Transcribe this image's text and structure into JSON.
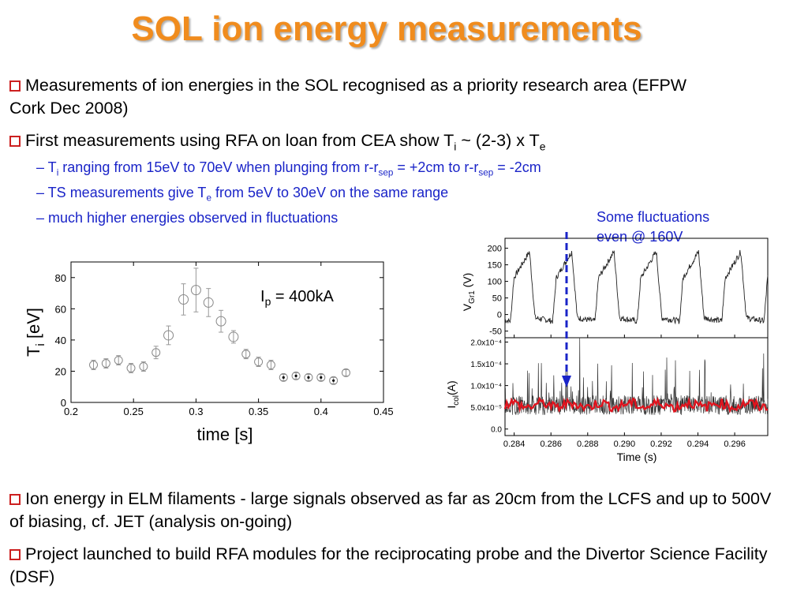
{
  "title": "SOL ion energy measurements",
  "bullets": {
    "b1": "Measurements of ion energies in the SOL recognised as a priority research area (EFPW Cork Dec 2008)",
    "b2": {
      "a": "First measurements using RFA on loan from CEA show T",
      "sub1": "i",
      "b": " ~ (2-3) x T",
      "sub2": "e"
    },
    "s1": {
      "a": "– T",
      "sub1": "i",
      "b": " ranging from 15eV to 70eV when plunging from r-r",
      "sub2": "sep",
      "c": " = +2cm to r-r",
      "sub3": "sep",
      "d": " = -2cm"
    },
    "s2": {
      "a": "– TS measurements give T",
      "sub1": "e",
      "b": " from 5eV to 30eV on the same range"
    },
    "s3": "– much higher energies observed in fluctuations",
    "b3": "Ion energy in ELM filaments - large signals observed as far as 20cm from the LCFS and up to 500V of biasing, cf. JET (analysis on-going)",
    "b4": "Project launched to build RFA modules for the reciprocating probe and the Divertor Science Facility (DSF)"
  },
  "annotation": {
    "line1": "Some fluctuations",
    "line2": "even @ 160V"
  },
  "colors": {
    "title": "#f08c1e",
    "subtext": "#1a24c8",
    "bullet_box": "#cc2020",
    "trace_avg": "#e0141e"
  },
  "chart_data": [
    {
      "type": "scatter",
      "xlabel": "time [s]",
      "ylabel_main": "T",
      "ylabel_sub": "i",
      "ylabel_rest": " [eV]",
      "annotation": {
        "main": "I",
        "sub": "p",
        "rest": " = 400kA"
      },
      "xlim": [
        0.2,
        0.45
      ],
      "ylim": [
        0,
        90
      ],
      "xticks": [
        "0.2",
        "0.25",
        "0.3",
        "0.35",
        "0.4",
        "0.45"
      ],
      "yticks": [
        "0",
        "20",
        "40",
        "60",
        "80"
      ],
      "points": [
        {
          "x": 0.218,
          "y": 24,
          "err": 3
        },
        {
          "x": 0.228,
          "y": 25,
          "err": 3
        },
        {
          "x": 0.238,
          "y": 27,
          "err": 3
        },
        {
          "x": 0.248,
          "y": 22,
          "err": 3
        },
        {
          "x": 0.258,
          "y": 23,
          "err": 3
        },
        {
          "x": 0.268,
          "y": 32,
          "err": 4
        },
        {
          "x": 0.278,
          "y": 43,
          "err": 6
        },
        {
          "x": 0.29,
          "y": 66,
          "err": 10
        },
        {
          "x": 0.3,
          "y": 72,
          "err": 14
        },
        {
          "x": 0.31,
          "y": 64,
          "err": 9
        },
        {
          "x": 0.32,
          "y": 52,
          "err": 7
        },
        {
          "x": 0.33,
          "y": 42,
          "err": 4
        },
        {
          "x": 0.34,
          "y": 31,
          "err": 3
        },
        {
          "x": 0.35,
          "y": 26,
          "err": 3
        },
        {
          "x": 0.36,
          "y": 24,
          "err": 3
        },
        {
          "x": 0.37,
          "y": 16,
          "err": 2
        },
        {
          "x": 0.38,
          "y": 17,
          "err": 2
        },
        {
          "x": 0.39,
          "y": 16,
          "err": 2
        },
        {
          "x": 0.4,
          "y": 16,
          "err": 2
        },
        {
          "x": 0.41,
          "y": 14,
          "err": 2
        },
        {
          "x": 0.42,
          "y": 19,
          "err": 2
        }
      ]
    },
    {
      "type": "line",
      "top_ylabel": {
        "main": "V",
        "sub": "Gr1",
        "rest": " (V)"
      },
      "bottom_ylabel": {
        "main": "I",
        "sub": "col",
        "rest": "(A)"
      },
      "xlabel": "Time (s)",
      "xlim": [
        0.2835,
        0.2978
      ],
      "xticks": [
        "0.284",
        "0.286",
        "0.288",
        "0.290",
        "0.292",
        "0.294",
        "0.296"
      ],
      "top_ylim": [
        -70,
        230
      ],
      "top_yticks": [
        "200",
        "150",
        "100",
        "50",
        "0",
        "-50"
      ],
      "bottom_ylim": [
        -0.15,
        2.1
      ],
      "bottom_yticks": [
        "2.0x10⁻⁴",
        "1.5x10⁻⁴",
        "1.0x10⁻⁴",
        "5.0x10⁻⁵",
        "0.0"
      ],
      "voltage_period_ms": 2.3,
      "voltage_range": [
        -20,
        195
      ],
      "current_baseline": 0.55
    }
  ]
}
